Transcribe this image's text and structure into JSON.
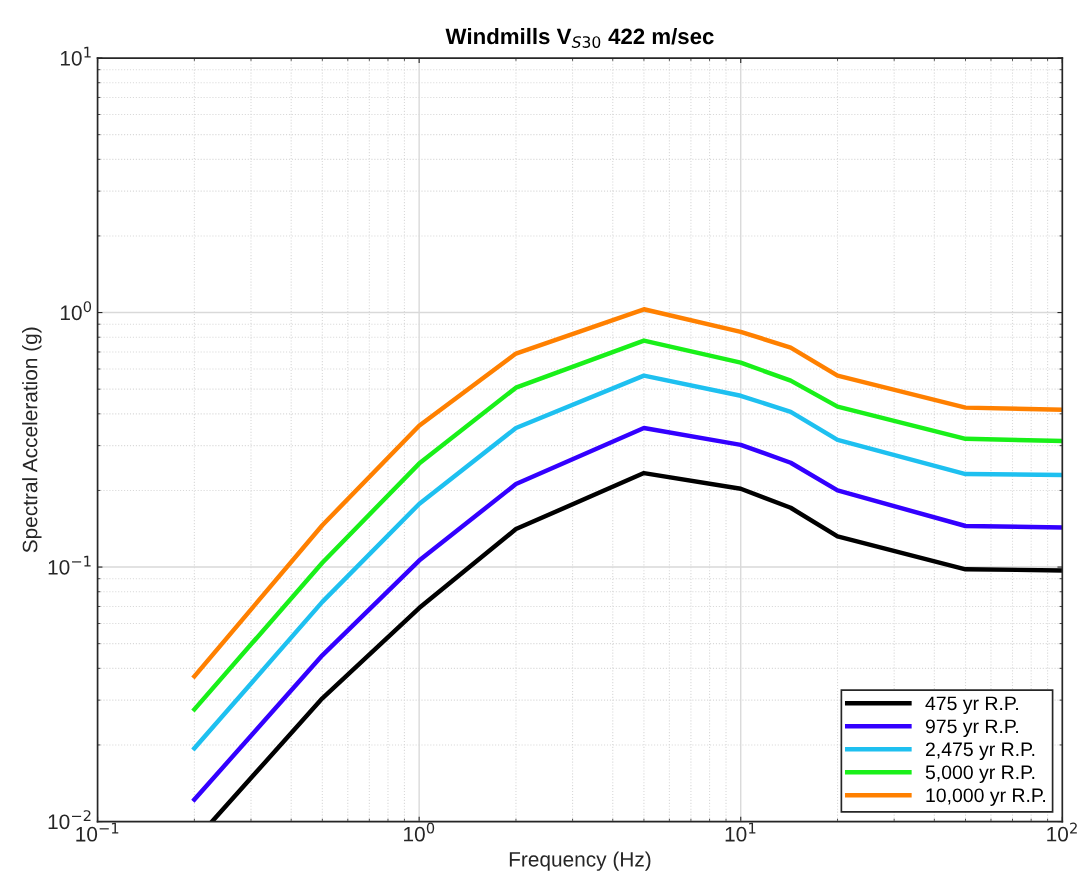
{
  "chart_data": {
    "type": "line",
    "title": "Windmills V$_{S30}$ 422 m/sec",
    "xlabel": "Frequency (Hz)",
    "ylabel": "Spectral Acceleration (g)",
    "log": "xy",
    "grid": true,
    "legend": "bottom right",
    "line_style": "solid",
    "marker": "none",
    "xlim": [
      0.1,
      100
    ],
    "ylim": [
      0.01,
      10
    ],
    "xticks": [
      {
        "value": 0.1,
        "label": "10$^{−1}$"
      },
      {
        "value": 1,
        "label": "10$^{0}$"
      },
      {
        "value": 10,
        "label": "10$^{1}$"
      },
      {
        "value": 100,
        "label": "10$^{2}$"
      }
    ],
    "yticks": [
      {
        "value": 0.01,
        "label": "10$^{−2}$"
      },
      {
        "value": 0.1,
        "label": "10$^{−1}$"
      },
      {
        "value": 1,
        "label": "10$^{0}$"
      },
      {
        "value": 10,
        "label": "10$^{1}$"
      }
    ],
    "x": [
      0.2,
      0.5,
      1,
      2,
      5,
      10,
      14.3,
      20,
      50,
      100
    ],
    "series": [
      {
        "name": "475 yr R.P.",
        "color": "#000000",
        "x": [
          0.227,
          0.5,
          1,
          2,
          5,
          10,
          14.3,
          20,
          50,
          100
        ],
        "values": [
          0.01,
          0.0305,
          0.069,
          0.141,
          0.234,
          0.203,
          0.171,
          0.132,
          0.098,
          0.097
        ]
      },
      {
        "name": "975 yr R.P.",
        "color": "#3300ff",
        "values": [
          0.0122,
          0.045,
          0.106,
          0.212,
          0.352,
          0.302,
          0.257,
          0.2,
          0.145,
          0.143
        ]
      },
      {
        "name": "2,475 yr R.P.",
        "color": "#1ec0f0",
        "values": [
          0.0194,
          0.073,
          0.177,
          0.352,
          0.565,
          0.471,
          0.407,
          0.316,
          0.232,
          0.23
        ]
      },
      {
        "name": "5,000 yr R.P.",
        "color": "#19f019",
        "values": [
          0.0276,
          0.104,
          0.255,
          0.507,
          0.776,
          0.636,
          0.54,
          0.427,
          0.319,
          0.313
        ]
      },
      {
        "name": "10,000 yr R.P.",
        "color": "#ff8000",
        "values": [
          0.0372,
          0.146,
          0.359,
          0.69,
          1.03,
          0.84,
          0.728,
          0.565,
          0.423,
          0.415
        ]
      }
    ]
  }
}
